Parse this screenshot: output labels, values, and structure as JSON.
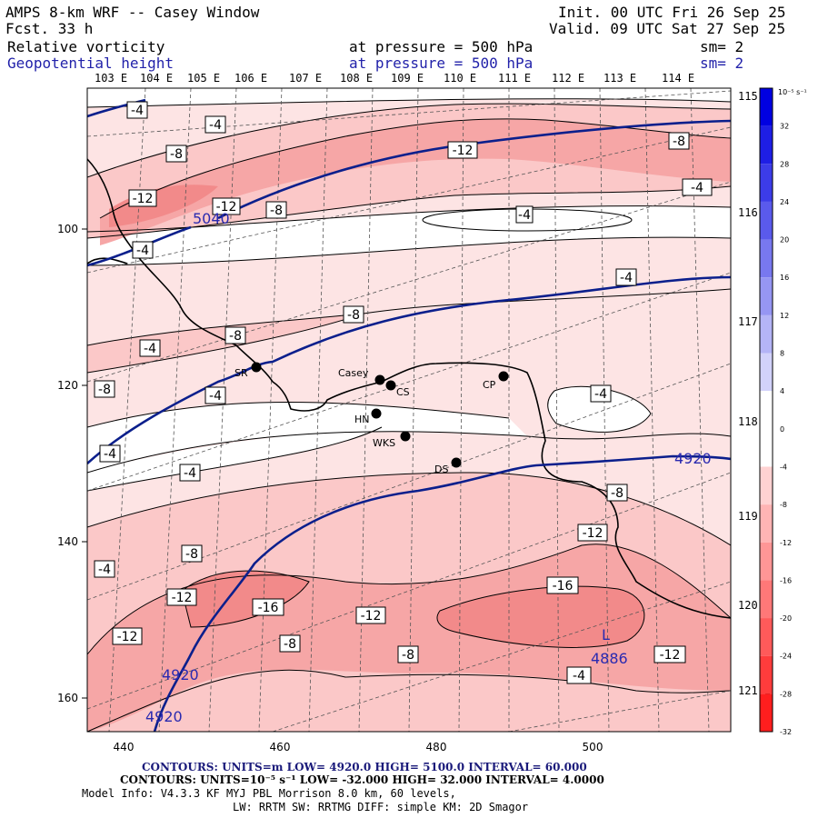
{
  "header": {
    "title": "AMPS 8-km WRF -- Casey Window",
    "forecast": "Fcst.    33 h",
    "init": "Init. 00 UTC Fri 26 Sep 25",
    "valid": "Valid. 09 UTC Sat 27 Sep 25",
    "field1": "Relative vorticity",
    "field1_level": "at pressure =  500 hPa",
    "field1_sm": "sm= 2",
    "field2": "Geopotential height",
    "field2_level": "at pressure =  500 hPa",
    "field2_sm": "sm= 2"
  },
  "colors": {
    "height_contour": "#0b1f8c",
    "coastline": "#000000",
    "shade_light": "#fde4e4",
    "shade_mid": "#fbc8c8",
    "shade_strong": "#f6a6a6",
    "shade_max": "#f28a8a"
  },
  "longitude_labels": [
    "103 E",
    "104 E",
    "105 E",
    "106 E",
    "107 E",
    "108 E",
    "109 E",
    "110 E",
    "111 E",
    "112 E",
    "113 E",
    "114 E"
  ],
  "longitude_labels_right": [
    "115 E",
    "116 E",
    "117 E",
    "118 E",
    "119 E",
    "120 E",
    "121 E"
  ],
  "y_axis_ticks": [
    "100",
    "120",
    "140",
    "160"
  ],
  "x_axis_ticks": [
    "440",
    "460",
    "480",
    "500"
  ],
  "stations": [
    {
      "label": "Casey"
    },
    {
      "label": "CS"
    },
    {
      "label": "CP"
    },
    {
      "label": "SR"
    },
    {
      "label": "HN"
    },
    {
      "label": "WKS"
    },
    {
      "label": "DS"
    }
  ],
  "vorticity_labels": [
    "-4",
    "-4",
    "-8",
    "-12",
    "-8",
    "-12",
    "-12",
    "-8",
    "-4",
    "-4",
    "-4",
    "-8",
    "-8",
    "-4",
    "-8",
    "-4",
    "-4",
    "-4",
    "-4",
    "-4",
    "-8",
    "-12",
    "-8",
    "-4",
    "-12",
    "-16",
    "-16",
    "-12",
    "-8",
    "-8",
    "-12",
    "-12",
    "-4"
  ],
  "height_labels": [
    "5040",
    "4920",
    "4920",
    "4920",
    "4886",
    "L"
  ],
  "colorbar": {
    "unit": "10⁻⁵ s⁻¹",
    "ticks": [
      "32",
      "28",
      "24",
      "20",
      "16",
      "12",
      "8",
      "4",
      "0",
      "-4",
      "-8",
      "-12",
      "-16",
      "-20",
      "-24",
      "-28",
      "-32"
    ],
    "levels": [
      36,
      32,
      28,
      24,
      20,
      16,
      12,
      8,
      4,
      0,
      -4,
      -8,
      -12,
      -16,
      -20,
      -24,
      -28,
      -32
    ]
  },
  "footer": {
    "line1": "CONTOURS:  UNITS=m  LOW=  4920.0          HIGH=  5100.0          INTERVAL=   60.000",
    "line2": "CONTOURS:  UNITS=10⁻⁵ s⁻¹  LOW= -32.000        HIGH=  32.000      INTERVAL=   4.0000",
    "line3": "Model Info: V4.3.3   KF      MYJ PBL  Morrison            8.0 km,  60 levels,",
    "line4": "LW: RRTM SW: RRTMG    DIFF: simple KM: 2D Smagor"
  }
}
